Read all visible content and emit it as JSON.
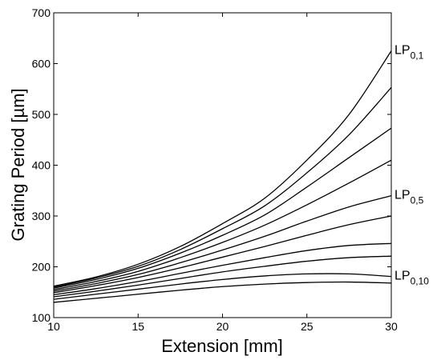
{
  "chart_data": {
    "type": "line",
    "xlabel": "Extension [mm]",
    "ylabel": "Grating Period [µm]",
    "xlim": [
      10,
      30
    ],
    "ylim": [
      100,
      700
    ],
    "xticks": [
      10,
      15,
      20,
      25,
      30
    ],
    "yticks": [
      100,
      200,
      300,
      400,
      500,
      600,
      700
    ],
    "grid": false,
    "line_color": "#000000",
    "x": [
      10,
      12.5,
      15,
      17.5,
      20,
      22.5,
      25,
      27.5,
      30
    ],
    "series": [
      {
        "values": [
          162,
          180,
          205,
          240,
          285,
          335,
          410,
          500,
          625
        ],
        "label_main": "LP",
        "label_sub": "0,1"
      },
      {
        "values": [
          160,
          178,
          201,
          234,
          275,
          320,
          385,
          460,
          553
        ]
      },
      {
        "values": [
          158,
          175,
          197,
          227,
          262,
          302,
          357,
          415,
          473
        ]
      },
      {
        "values": [
          155,
          171,
          191,
          218,
          248,
          282,
          322,
          365,
          410
        ]
      },
      {
        "values": [
          152,
          167,
          185,
          208,
          233,
          260,
          290,
          318,
          340
        ],
        "label_main": "LP",
        "label_sub": "0,5"
      },
      {
        "values": [
          149,
          163,
          179,
          198,
          219,
          240,
          262,
          283,
          300
        ]
      },
      {
        "values": [
          145,
          157,
          171,
          187,
          203,
          218,
          232,
          242,
          246
        ]
      },
      {
        "values": [
          141,
          152,
          164,
          177,
          190,
          201,
          211,
          218,
          221
        ]
      },
      {
        "values": [
          136,
          146,
          156,
          166,
          175,
          182,
          186,
          186,
          181
        ],
        "label_main": "LP",
        "label_sub": "0,10"
      },
      {
        "values": [
          130,
          138,
          146,
          154,
          161,
          166,
          169,
          170,
          168
        ]
      }
    ]
  }
}
